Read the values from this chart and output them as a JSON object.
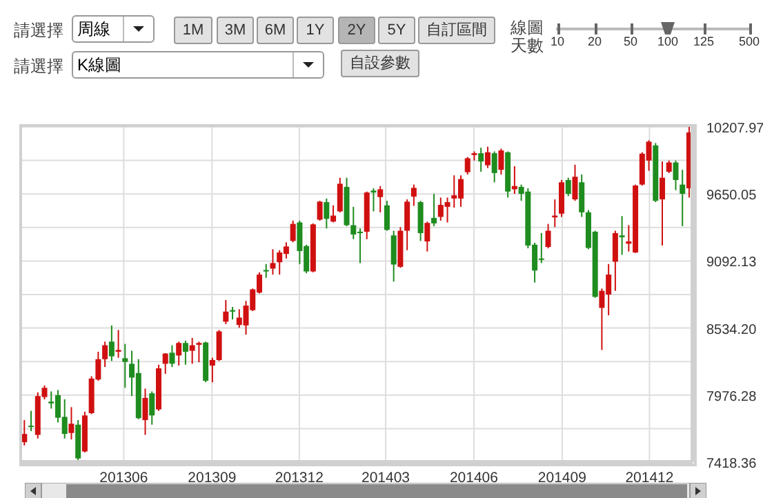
{
  "chart_data": {
    "type": "candlestick",
    "x": [
      "2013-02-18",
      "2013-02-25",
      "2013-03-04",
      "2013-03-11",
      "2013-03-18",
      "2013-03-25",
      "2013-04-01",
      "2013-04-08",
      "2013-04-15",
      "2013-04-22",
      "2013-04-29",
      "2013-05-06",
      "2013-05-13",
      "2013-05-20",
      "2013-05-27",
      "2013-06-03",
      "2013-06-10",
      "2013-06-17",
      "2013-06-24",
      "2013-07-01",
      "2013-07-08",
      "2013-07-15",
      "2013-07-22",
      "2013-07-29",
      "2013-08-05",
      "2013-08-12",
      "2013-08-19",
      "2013-08-26",
      "2013-09-02",
      "2013-09-09",
      "2013-09-16",
      "2013-09-23",
      "2013-09-30",
      "2013-10-07",
      "2013-10-14",
      "2013-10-21",
      "2013-10-28",
      "2013-11-04",
      "2013-11-11",
      "2013-11-18",
      "2013-11-25",
      "2013-12-02",
      "2013-12-09",
      "2013-12-16",
      "2013-12-23",
      "2013-12-30",
      "2014-01-06",
      "2014-01-13",
      "2014-01-20",
      "2014-01-27",
      "2014-02-03",
      "2014-02-10",
      "2014-02-17",
      "2014-02-24",
      "2014-03-03",
      "2014-03-10",
      "2014-03-17",
      "2014-03-24",
      "2014-03-31",
      "2014-04-07",
      "2014-04-14",
      "2014-04-21",
      "2014-04-28",
      "2014-05-05",
      "2014-05-12",
      "2014-05-19",
      "2014-05-26",
      "2014-06-02",
      "2014-06-09",
      "2014-06-16",
      "2014-06-23",
      "2014-06-30",
      "2014-07-07",
      "2014-07-14",
      "2014-07-21",
      "2014-07-28",
      "2014-08-04",
      "2014-08-11",
      "2014-08-18",
      "2014-08-25",
      "2014-09-01",
      "2014-09-08",
      "2014-09-15",
      "2014-09-22",
      "2014-09-29",
      "2014-10-06",
      "2014-10-13",
      "2014-10-20",
      "2014-10-27",
      "2014-11-03",
      "2014-11-10",
      "2014-11-17",
      "2014-11-24",
      "2014-12-01",
      "2014-12-08",
      "2014-12-15",
      "2014-12-22",
      "2014-12-29",
      "2015-01-05",
      "2015-01-12"
    ],
    "ohlc": [
      [
        7584,
        7768,
        7557,
        7653
      ],
      [
        7722,
        7845,
        7676,
        7711
      ],
      [
        7645,
        7999,
        7615,
        7968
      ],
      [
        7960,
        8056,
        7941,
        8037
      ],
      [
        7922,
        8007,
        7864,
        7907
      ],
      [
        7976,
        8018,
        7749,
        7788
      ],
      [
        7795,
        7941,
        7615,
        7653
      ],
      [
        7661,
        7876,
        7607,
        7738
      ],
      [
        7730,
        7768,
        7418.36,
        7449
      ],
      [
        7507,
        7838,
        7499,
        7807
      ],
      [
        7826,
        8133,
        7818,
        8114
      ],
      [
        8106,
        8337,
        8095,
        8275
      ],
      [
        8275,
        8421,
        8210,
        8391
      ],
      [
        8421,
        8556,
        8260,
        8299
      ],
      [
        8337,
        8518,
        8287,
        8352
      ],
      [
        8283,
        8402,
        8037,
        8252
      ],
      [
        8237,
        8345,
        7968,
        8122
      ],
      [
        8160,
        8275,
        7776,
        7784
      ],
      [
        7768,
        8030,
        7645,
        7953
      ],
      [
        7991,
        8007,
        7730,
        7807
      ],
      [
        7857,
        8229,
        7845,
        8199
      ],
      [
        8237,
        8325,
        8153,
        8322
      ],
      [
        8329,
        8391,
        8210,
        8237
      ],
      [
        8306,
        8421,
        8222,
        8410
      ],
      [
        8410,
        8429,
        8229,
        8337
      ],
      [
        8345,
        8452,
        8237,
        8391
      ],
      [
        8395,
        8421,
        8249,
        8410
      ],
      [
        8414,
        8421,
        8083,
        8095
      ],
      [
        8222,
        8287,
        8083,
        8268
      ],
      [
        8268,
        8518,
        8260,
        8506
      ],
      [
        8587,
        8767,
        8567,
        8671
      ],
      [
        8683,
        8710,
        8606,
        8671
      ],
      [
        8560,
        8690,
        8537,
        8621
      ],
      [
        8556,
        8760,
        8479,
        8721
      ],
      [
        8683,
        8863,
        8675,
        8856
      ],
      [
        8829,
        8998,
        8821,
        8979
      ],
      [
        9017,
        9067,
        8952,
        9005
      ],
      [
        9029,
        9190,
        8979,
        9075
      ],
      [
        9082,
        9182,
        8979,
        9163
      ],
      [
        9151,
        9248,
        9113,
        9213
      ],
      [
        9259,
        9428,
        9248,
        9401
      ],
      [
        9413,
        9428,
        9067,
        9175
      ],
      [
        9217,
        9228,
        8990,
        9005
      ],
      [
        9005,
        9405,
        8998,
        9397
      ],
      [
        9436,
        9593,
        9428,
        9586
      ],
      [
        9582,
        9612,
        9363,
        9443
      ],
      [
        9420,
        9555,
        9413,
        9470
      ],
      [
        9505,
        9785,
        9497,
        9735
      ],
      [
        9709,
        9785,
        9382,
        9390
      ],
      [
        9390,
        9543,
        9274,
        9313
      ],
      [
        9336,
        9363,
        9075,
        9324
      ],
      [
        9336,
        9670,
        9274,
        9662
      ],
      [
        9678,
        9697,
        9505,
        9662
      ],
      [
        9624,
        9716,
        9497,
        9689
      ],
      [
        9555,
        9593,
        9344,
        9351
      ],
      [
        9305,
        9344,
        8921,
        9063
      ],
      [
        9044,
        9374,
        9036,
        9344
      ],
      [
        9344,
        9605,
        9182,
        9586
      ],
      [
        9628,
        9728,
        9551,
        9701
      ],
      [
        9582,
        9593,
        9259,
        9324
      ],
      [
        9255,
        9420,
        9171,
        9409
      ],
      [
        9451,
        9651,
        9382,
        9405
      ],
      [
        9459,
        9620,
        9428,
        9559
      ],
      [
        9543,
        9620,
        9413,
        9582
      ],
      [
        9612,
        9805,
        9536,
        9639
      ],
      [
        9612,
        9805,
        9543,
        9774
      ],
      [
        9831,
        9958,
        9812,
        9947
      ],
      [
        9974,
        10004,
        9928,
        9989
      ],
      [
        9989,
        10035,
        9835,
        9920
      ],
      [
        9889,
        10043,
        9866,
        9997
      ],
      [
        9989,
        10004,
        9747,
        9824
      ],
      [
        9851,
        10027,
        9812,
        10012
      ],
      [
        9997,
        10004,
        9620,
        9670
      ],
      [
        9689,
        9881,
        9651,
        9716
      ],
      [
        9709,
        9728,
        9593,
        9651
      ],
      [
        9670,
        9697,
        9198,
        9221
      ],
      [
        9228,
        9244,
        8913,
        9013
      ],
      [
        9113,
        9324,
        9075,
        9102
      ],
      [
        9209,
        9401,
        9198,
        9344
      ],
      [
        9455,
        9605,
        9374,
        9470
      ],
      [
        9486,
        9766,
        9459,
        9747
      ],
      [
        9766,
        9785,
        9632,
        9651
      ],
      [
        9605,
        9893,
        9593,
        9793
      ],
      [
        9747,
        9812,
        9459,
        9497
      ],
      [
        9497,
        9516,
        9190,
        9201
      ],
      [
        9336,
        9344,
        8786,
        8794
      ],
      [
        8702,
        8863,
        8352,
        8844
      ],
      [
        8813,
        9067,
        8640,
        8979
      ],
      [
        9086,
        9344,
        8844,
        9324
      ],
      [
        9305,
        9466,
        9144,
        9290
      ],
      [
        9236,
        9390,
        9171,
        9255
      ],
      [
        9163,
        9728,
        9159,
        9720
      ],
      [
        9728,
        9997,
        9720,
        9985
      ],
      [
        9928,
        10097,
        9843,
        10085
      ],
      [
        10054,
        10074,
        9582,
        9593
      ],
      [
        9605,
        9920,
        9221,
        9785
      ],
      [
        9835,
        9928,
        9824,
        9912
      ],
      [
        9912,
        9928,
        9682,
        9766
      ],
      [
        9728,
        9851,
        9382,
        9651
      ],
      [
        9697,
        10207.97,
        9620,
        10162
      ]
    ],
    "colors": [
      "#d01010",
      "#1e8c1e",
      "#d01010",
      "#d01010",
      "#1e8c1e",
      "#1e8c1e",
      "#1e8c1e",
      "#d01010",
      "#1e8c1e",
      "#d01010",
      "#d01010",
      "#d01010",
      "#d01010",
      "#1e8c1e",
      "#d01010",
      "#1e8c1e",
      "#1e8c1e",
      "#1e8c1e",
      "#d01010",
      "#1e8c1e",
      "#d01010",
      "#d01010",
      "#1e8c1e",
      "#d01010",
      "#1e8c1e",
      "#d01010",
      "#d01010",
      "#1e8c1e",
      "#d01010",
      "#d01010",
      "#d01010",
      "#1e8c1e",
      "#d01010",
      "#d01010",
      "#d01010",
      "#d01010",
      "#1e8c1e",
      "#d01010",
      "#d01010",
      "#d01010",
      "#d01010",
      "#1e8c1e",
      "#1e8c1e",
      "#d01010",
      "#d01010",
      "#1e8c1e",
      "#d01010",
      "#d01010",
      "#1e8c1e",
      "#1e8c1e",
      "#1e8c1e",
      "#d01010",
      "#1e8c1e",
      "#d01010",
      "#1e8c1e",
      "#1e8c1e",
      "#d01010",
      "#d01010",
      "#d01010",
      "#1e8c1e",
      "#d01010",
      "#1e8c1e",
      "#d01010",
      "#d01010",
      "#d01010",
      "#d01010",
      "#d01010",
      "#d01010",
      "#1e8c1e",
      "#d01010",
      "#1e8c1e",
      "#d01010",
      "#1e8c1e",
      "#d01010",
      "#1e8c1e",
      "#1e8c1e",
      "#1e8c1e",
      "#1e8c1e",
      "#d01010",
      "#d01010",
      "#d01010",
      "#1e8c1e",
      "#d01010",
      "#1e8c1e",
      "#1e8c1e",
      "#1e8c1e",
      "#d01010",
      "#d01010",
      "#d01010",
      "#1e8c1e",
      "#d01010",
      "#d01010",
      "#d01010",
      "#d01010",
      "#1e8c1e",
      "#d01010",
      "#d01010",
      "#1e8c1e",
      "#1e8c1e",
      "#d01010"
    ],
    "xlim": [
      "2013-02-15",
      "2015-01-15"
    ],
    "xticks": [
      {
        "value": "2013-06-01",
        "label": "201306"
      },
      {
        "value": "2013-09-01",
        "label": "201309"
      },
      {
        "value": "2013-12-01",
        "label": "201312"
      },
      {
        "value": "2014-03-01",
        "label": "201403"
      },
      {
        "value": "2014-06-01",
        "label": "201406"
      },
      {
        "value": "2014-09-01",
        "label": "201409"
      },
      {
        "value": "2014-12-01",
        "label": "201412"
      }
    ],
    "ylim": [
      7418.36,
      10207.97
    ],
    "yticks": [
      {
        "value": 7418.36,
        "label": "7418.36"
      },
      {
        "value": 7697.32,
        "label": null
      },
      {
        "value": 7976.28,
        "label": "7976.28"
      },
      {
        "value": 8255.24,
        "label": null
      },
      {
        "value": 8534.2,
        "label": "8534.20"
      },
      {
        "value": 8813.17,
        "label": null
      },
      {
        "value": 9092.13,
        "label": "9092.13"
      },
      {
        "value": 9371.09,
        "label": null
      },
      {
        "value": 9650.05,
        "label": "9650.05"
      },
      {
        "value": 9929.01,
        "label": null
      },
      {
        "value": 10207.97,
        "label": "10207.97"
      }
    ],
    "grid": true,
    "annotations": [
      "請選擇",
      "周線",
      "1M",
      "3M",
      "6M",
      "1Y",
      "2Y",
      "5Y",
      "自訂區間",
      "線圖",
      "天數",
      "10",
      "20",
      "50",
      "100",
      "125",
      "500",
      "請選擇",
      "K線圖",
      "自設參數"
    ]
  }
}
